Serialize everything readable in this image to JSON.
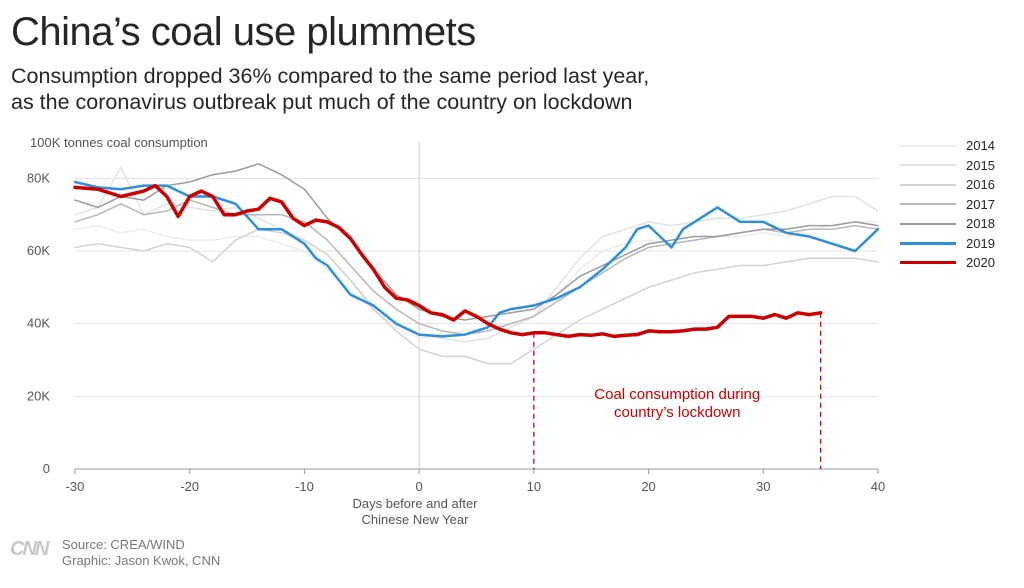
{
  "header": {
    "title": "China’s coal use plummets",
    "subtitle_line1": "Consumption dropped 36% compared to the same period last year,",
    "subtitle_line2": "as the coronavirus outbreak put much of the country on lockdown"
  },
  "footer": {
    "logo": "CNN",
    "source": "Source: CREA/WIND",
    "graphic": "Graphic: Jason Kwok, CNN"
  },
  "chart_data": {
    "type": "line",
    "ylabel": "100K tonnes coal consumption",
    "xlabel_line1": "Days before and after",
    "xlabel_line2": "Chinese New Year",
    "xlim": [
      -30,
      40
    ],
    "ylim": [
      0,
      90000
    ],
    "x_ticks": [
      -30,
      -20,
      -10,
      0,
      10,
      20,
      30,
      40
    ],
    "x_tick_labels": [
      "-30",
      "-20",
      "-10",
      "0",
      "10",
      "20",
      "30",
      "40"
    ],
    "y_ticks": [
      0,
      20000,
      40000,
      60000,
      80000
    ],
    "y_tick_labels": [
      "0",
      "20K",
      "40K",
      "60K",
      "80K"
    ],
    "grid": "horizontal",
    "legend_position": "right",
    "annotation": {
      "line1": "Coal consumption during",
      "line2": "country’s lockdown",
      "x_start": 10,
      "x_end": 35,
      "color": "#cc0000"
    },
    "series": [
      {
        "name": "2014",
        "color": "#ececec",
        "width": 1.5,
        "x": [
          -30,
          -28,
          -26,
          -24,
          -22,
          -20,
          -18,
          -16,
          -14,
          -12,
          -10,
          -8,
          -6,
          -4,
          -2,
          0,
          2,
          4,
          6,
          8,
          10,
          12,
          14,
          16,
          18,
          20,
          22,
          24,
          26,
          28,
          30,
          32,
          34,
          36,
          38,
          40
        ],
        "y": [
          66000,
          67000,
          65000,
          66000,
          64000,
          63000,
          63000,
          64000,
          64000,
          62000,
          60000,
          55000,
          49000,
          44000,
          39000,
          36000,
          37000,
          38000,
          39000,
          40000,
          42000,
          48000,
          55000,
          60000,
          62000,
          63000,
          62000,
          63000,
          64000,
          64000,
          65000,
          64000,
          66000,
          67000,
          68000,
          68000
        ]
      },
      {
        "name": "2015",
        "color": "#e2e2e2",
        "width": 1.5,
        "x": [
          -30,
          -28,
          -26,
          -24,
          -22,
          -20,
          -18,
          -16,
          -14,
          -12,
          -10,
          -8,
          -6,
          -4,
          -2,
          0,
          2,
          4,
          6,
          8,
          10,
          12,
          14,
          16,
          18,
          20,
          22,
          24,
          26,
          28,
          30,
          32,
          34,
          36,
          38,
          40
        ],
        "y": [
          70000,
          72000,
          83000,
          70000,
          73000,
          72000,
          71000,
          72000,
          69000,
          66000,
          63000,
          59000,
          52000,
          45000,
          40000,
          37000,
          36000,
          35000,
          36000,
          39000,
          42000,
          50000,
          58000,
          64000,
          66000,
          68000,
          67000,
          68000,
          69000,
          69000,
          70000,
          71000,
          73000,
          75000,
          75000,
          71000
        ]
      },
      {
        "name": "2016",
        "color": "#d2d2d2",
        "width": 1.5,
        "x": [
          -30,
          -28,
          -26,
          -24,
          -22,
          -20,
          -18,
          -16,
          -14,
          -12,
          -10,
          -8,
          -6,
          -4,
          -2,
          0,
          2,
          4,
          6,
          8,
          10,
          12,
          14,
          16,
          18,
          20,
          22,
          24,
          26,
          28,
          30,
          32,
          34,
          36,
          38,
          40
        ],
        "y": [
          61000,
          62000,
          61000,
          60000,
          62000,
          61000,
          57000,
          63000,
          66000,
          65000,
          63000,
          59000,
          52000,
          44000,
          38000,
          33000,
          31000,
          31000,
          29000,
          29000,
          33000,
          37000,
          41000,
          44000,
          47000,
          50000,
          52000,
          54000,
          55000,
          56000,
          56000,
          57000,
          58000,
          58000,
          58000,
          57000
        ]
      },
      {
        "name": "2017",
        "color": "#b8b8b8",
        "width": 1.5,
        "x": [
          -30,
          -28,
          -26,
          -24,
          -22,
          -20,
          -18,
          -16,
          -14,
          -12,
          -10,
          -8,
          -6,
          -4,
          -2,
          0,
          2,
          4,
          6,
          8,
          10,
          12,
          14,
          16,
          18,
          20,
          22,
          24,
          26,
          28,
          30,
          32,
          34,
          36,
          38,
          40
        ],
        "y": [
          68000,
          70000,
          73000,
          70000,
          71000,
          74000,
          72000,
          70000,
          70000,
          70000,
          68000,
          63000,
          56000,
          49000,
          44000,
          40000,
          38000,
          37000,
          38000,
          40000,
          42000,
          46000,
          50000,
          54000,
          58000,
          61000,
          62000,
          63000,
          64000,
          65000,
          66000,
          65000,
          66000,
          66000,
          67000,
          66000
        ]
      },
      {
        "name": "2018",
        "color": "#9b9b9b",
        "width": 1.5,
        "x": [
          -30,
          -28,
          -26,
          -24,
          -22,
          -20,
          -18,
          -16,
          -14,
          -12,
          -10,
          -8,
          -6,
          -4,
          -2,
          0,
          2,
          4,
          6,
          8,
          10,
          12,
          14,
          16,
          18,
          20,
          22,
          24,
          26,
          28,
          30,
          32,
          34,
          36,
          38,
          40
        ],
        "y": [
          74000,
          72000,
          75000,
          74000,
          78000,
          79000,
          81000,
          82000,
          84000,
          81000,
          77000,
          69000,
          63000,
          55000,
          48000,
          44000,
          42000,
          41000,
          42000,
          43000,
          44000,
          48000,
          53000,
          56000,
          59000,
          62000,
          63000,
          64000,
          64000,
          65000,
          66000,
          66000,
          67000,
          67000,
          68000,
          67000
        ]
      },
      {
        "name": "2019",
        "color": "#2e8fd8",
        "width": 2.5,
        "x": [
          -30,
          -28,
          -26,
          -24,
          -22,
          -20,
          -18,
          -16,
          -14,
          -12,
          -10,
          -9,
          -8,
          -6,
          -4,
          -2,
          0,
          2,
          4,
          6,
          7,
          8,
          10,
          12,
          14,
          16,
          17,
          18,
          19,
          20,
          21,
          22,
          23,
          24,
          26,
          28,
          30,
          32,
          34,
          36,
          38,
          40
        ],
        "y": [
          79000,
          77500,
          77000,
          78000,
          78000,
          75000,
          75000,
          73000,
          66000,
          66000,
          62000,
          58000,
          56000,
          48000,
          45000,
          40000,
          37000,
          36500,
          37000,
          39000,
          43000,
          44000,
          45000,
          47000,
          50000,
          55000,
          58000,
          61000,
          66000,
          67000,
          64000,
          61000,
          66000,
          68000,
          72000,
          68000,
          68000,
          65000,
          64000,
          62000,
          60000,
          66000
        ]
      },
      {
        "name": "2020",
        "color": "#cc0000",
        "width": 3.5,
        "x": [
          -30,
          -28,
          -26,
          -24,
          -23,
          -22,
          -21,
          -20,
          -19,
          -18,
          -17,
          -16,
          -15,
          -14,
          -13,
          -12,
          -11,
          -10,
          -9,
          -8,
          -7,
          -6,
          -5,
          -4,
          -3,
          -2,
          -1,
          0,
          1,
          2,
          3,
          4,
          5,
          6,
          7,
          8,
          9,
          10,
          11,
          12,
          13,
          14,
          15,
          16,
          17,
          18,
          19,
          20,
          21,
          22,
          23,
          24,
          25,
          26,
          27,
          28,
          29,
          30,
          31,
          32,
          33,
          34,
          35
        ],
        "y": [
          77500,
          77000,
          75000,
          76500,
          78000,
          75000,
          69500,
          75000,
          76500,
          75000,
          70000,
          70000,
          71000,
          71500,
          74500,
          73500,
          69000,
          67000,
          68500,
          68000,
          66500,
          63500,
          59000,
          55000,
          50000,
          47000,
          46500,
          45000,
          43000,
          42500,
          41000,
          43500,
          42000,
          40000,
          38500,
          37500,
          37000,
          37500,
          37500,
          37000,
          36500,
          37000,
          36800,
          37200,
          36500,
          36800,
          37000,
          38000,
          37800,
          37800,
          38000,
          38500,
          38500,
          39000,
          42000,
          42000,
          42000,
          41500,
          42500,
          41500,
          43000,
          42500,
          43000
        ]
      }
    ]
  }
}
